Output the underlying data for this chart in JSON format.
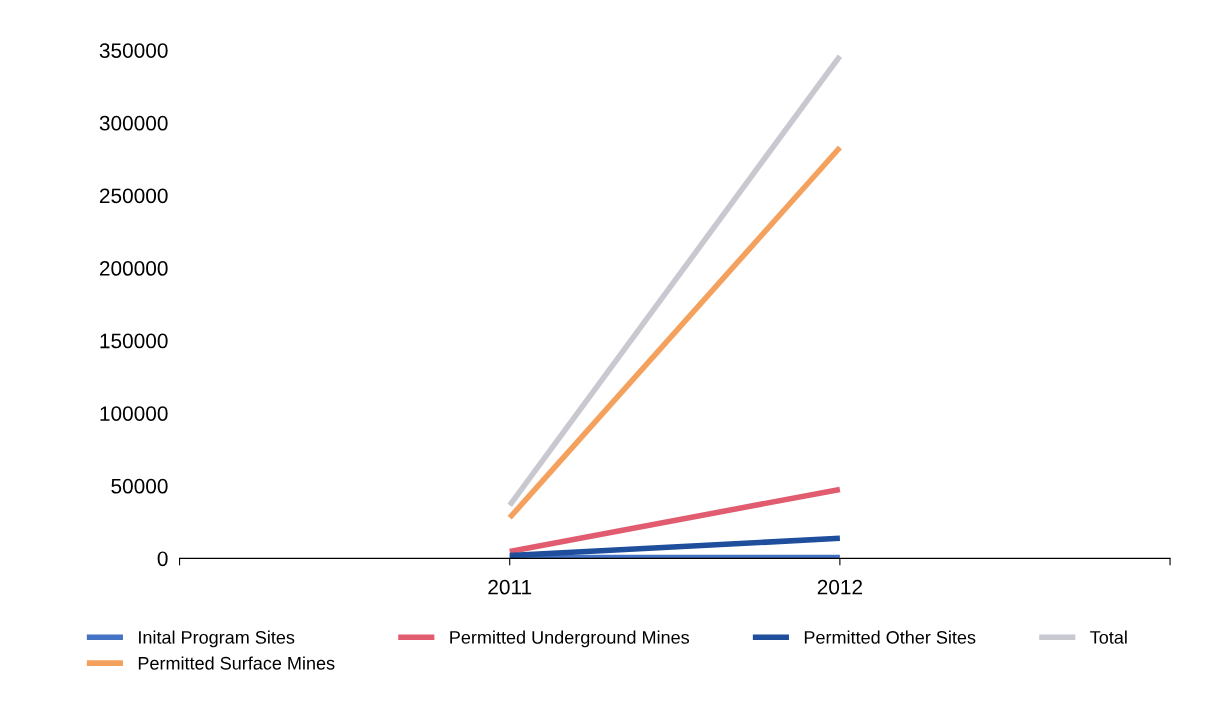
{
  "chart_data": {
    "type": "line",
    "categories": [
      null,
      "2011",
      "2012",
      null
    ],
    "series": [
      {
        "name": "Inital Program Sites",
        "color": "#4472c4",
        "values": [
          null,
          500,
          500,
          null
        ]
      },
      {
        "name": "Permitted Surface Mines",
        "color": "#f4a15d",
        "values": [
          null,
          28000,
          283000,
          null
        ]
      },
      {
        "name": "Permitted Underground Mines",
        "color": "#e05c6e",
        "values": [
          null,
          4800,
          47500,
          null
        ]
      },
      {
        "name": "Permitted Other Sites",
        "color": "#1f4e9c",
        "values": [
          null,
          2000,
          13800,
          null
        ]
      },
      {
        "name": "Total",
        "color": "#c8c8d0",
        "values": [
          null,
          36500,
          346000,
          null
        ]
      }
    ],
    "ylim": [
      0,
      350000
    ],
    "yticks": [
      0,
      50000,
      100000,
      150000,
      200000,
      250000,
      300000,
      350000
    ],
    "grid": false,
    "legend": "bottom",
    "marker": "none",
    "line_style": "solid"
  }
}
